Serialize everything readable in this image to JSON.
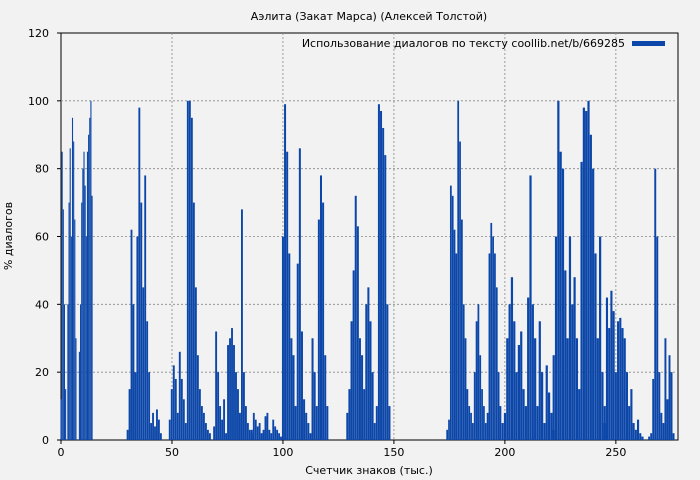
{
  "chart_data": {
    "type": "bar",
    "title": "Аэлита (Закат Марса) (Алексей Толстой)",
    "xlabel": "Счетчик знаков (тыс.)",
    "ylabel": "% диалогов",
    "xlim": [
      0,
      278
    ],
    "ylim": [
      0,
      120
    ],
    "xticks": [
      0,
      50,
      100,
      150,
      200,
      250
    ],
    "yticks": [
      0,
      20,
      40,
      60,
      80,
      100,
      120
    ],
    "grid": true,
    "legend_position": "top-right",
    "series": [
      {
        "name": "Использование диалогов по тексту coollib.net/b/669285",
        "color": "#0b46a8",
        "x_step": 0.5,
        "values": [
          12,
          85,
          68,
          40,
          15,
          0,
          40,
          70,
          86,
          60,
          95,
          88,
          65,
          30,
          0,
          0,
          26,
          40,
          70,
          80,
          85,
          75,
          60,
          85,
          90,
          95,
          100,
          72,
          0,
          0,
          0,
          0,
          0,
          0,
          0,
          0,
          0,
          0,
          0,
          0,
          0,
          0,
          0,
          0,
          0,
          0,
          0,
          0,
          0,
          0,
          0,
          0,
          0,
          0,
          0,
          0,
          0,
          0,
          0,
          0,
          0,
          0,
          0,
          0,
          0,
          0,
          0,
          0,
          0,
          0,
          0,
          0,
          0,
          0,
          0,
          0,
          0,
          0,
          0,
          0,
          0,
          0,
          0,
          0,
          0,
          0,
          0,
          0,
          0,
          0,
          0,
          0,
          0,
          0,
          0,
          0,
          0,
          0,
          0,
          0,
          0,
          0,
          0,
          0,
          0,
          0,
          0,
          0,
          0,
          0,
          0,
          0,
          0,
          0,
          0,
          0,
          0,
          0,
          0,
          0,
          0,
          0,
          0,
          0,
          0,
          0,
          0,
          0,
          0,
          0,
          0,
          0,
          0,
          0,
          0,
          0,
          0,
          0,
          0,
          0,
          0,
          0,
          0,
          0,
          0,
          0,
          0,
          0,
          0,
          0,
          0,
          0,
          0,
          0,
          0,
          0,
          0,
          0,
          0,
          0,
          0,
          0,
          0,
          0,
          0,
          0,
          0,
          0,
          0,
          0,
          0,
          0,
          0,
          0,
          0,
          0,
          0,
          0,
          0,
          0,
          0,
          0,
          0,
          0,
          0,
          0,
          0,
          0,
          0,
          0,
          0,
          0,
          0,
          0,
          0,
          0,
          0,
          0,
          0,
          0,
          0,
          0,
          0,
          0,
          0,
          0,
          0,
          0,
          0,
          0,
          0,
          0,
          0,
          0,
          0,
          0,
          0,
          0,
          0,
          0,
          0,
          0,
          0,
          0,
          0,
          0,
          0,
          0,
          0,
          0,
          0,
          0,
          0,
          0,
          0,
          0,
          0,
          0,
          0,
          0,
          0,
          0,
          0,
          0,
          0,
          0,
          0,
          0,
          0,
          0,
          0,
          0,
          0,
          0,
          0,
          0,
          0,
          0,
          0,
          0,
          0,
          0,
          0,
          0,
          0,
          0,
          0,
          0,
          0,
          0,
          0,
          0,
          0,
          0,
          0,
          0,
          0,
          0,
          0,
          0,
          0,
          0,
          0,
          0,
          0,
          0,
          0,
          0,
          0,
          0,
          0,
          0,
          0,
          0,
          0,
          0,
          0,
          0,
          0,
          0,
          0,
          0,
          0,
          0,
          0,
          0,
          0,
          0,
          0,
          0,
          0,
          0,
          0,
          0,
          0,
          0,
          0,
          0,
          0,
          0,
          0,
          0,
          0,
          0,
          0,
          0,
          0,
          0,
          0,
          0,
          0,
          0,
          0,
          0,
          0,
          0,
          0,
          0,
          0,
          0,
          0,
          0,
          0,
          0,
          0,
          0,
          0,
          0,
          0,
          0,
          0,
          0,
          0,
          0,
          0,
          0,
          0,
          0,
          0,
          0,
          0,
          0,
          0,
          0,
          0,
          0,
          0,
          0,
          0,
          0,
          0,
          0,
          0,
          0,
          0,
          0,
          0,
          0,
          0,
          0,
          0,
          0,
          0,
          0,
          0,
          0,
          0,
          0,
          0,
          0,
          0,
          0,
          0,
          0,
          0,
          0,
          0,
          0,
          0,
          0,
          0,
          0,
          0,
          0,
          0,
          0,
          0,
          0,
          0,
          0,
          0,
          0,
          0,
          0,
          0,
          0,
          0,
          0,
          0,
          0,
          0,
          0,
          0,
          0,
          0,
          0,
          0,
          0,
          0,
          0,
          0,
          0,
          0,
          0,
          0,
          0,
          0,
          0,
          0,
          0,
          0,
          0,
          0,
          0,
          0,
          0,
          0,
          0,
          0,
          0,
          0,
          0,
          0,
          0,
          0,
          0,
          0,
          0,
          0,
          0,
          0,
          0,
          0,
          0,
          0,
          0,
          0,
          0,
          0,
          0,
          0,
          0,
          0,
          0,
          0,
          0,
          0,
          0,
          0,
          0,
          0,
          0,
          0,
          0,
          0,
          0,
          0,
          0,
          0,
          0,
          0,
          0,
          0,
          0,
          0,
          0,
          0,
          0,
          0,
          0,
          0,
          0,
          0,
          0,
          0,
          0,
          0,
          0,
          0,
          0,
          0,
          0,
          0,
          0,
          0,
          0,
          0,
          0,
          0,
          0,
          0,
          0,
          0,
          0,
          0,
          0,
          0,
          0,
          0,
          0,
          0,
          0,
          0,
          0,
          0,
          0,
          0,
          0,
          0,
          0,
          0,
          0,
          0,
          0,
          0,
          0,
          0,
          0,
          0,
          0,
          0,
          0,
          0,
          0,
          0,
          0,
          0,
          0,
          0,
          0,
          0,
          0,
          0,
          0,
          0,
          0,
          0,
          0,
          0,
          0,
          0,
          0,
          0,
          0,
          0,
          0,
          0,
          0,
          0,
          0,
          0,
          0,
          0,
          0,
          0,
          0,
          0,
          0,
          0,
          0,
          0,
          0,
          0,
          0,
          0,
          0,
          0,
          0,
          0,
          0,
          0,
          0,
          0,
          0,
          0,
          0,
          0,
          0,
          0,
          0,
          0,
          0,
          0,
          0,
          0,
          0,
          0,
          0,
          0,
          0,
          0,
          0,
          0,
          0,
          0,
          0,
          0,
          0,
          0,
          0,
          0,
          0,
          0,
          0,
          0,
          0,
          0,
          0,
          0,
          0,
          0,
          0,
          0,
          0,
          0,
          0,
          0,
          0,
          0,
          0,
          0,
          0,
          0,
          0,
          0,
          0,
          0,
          0
        ]
      }
    ],
    "segments": [
      {
        "from": 0,
        "to": 14,
        "values": [
          12,
          85,
          68,
          40,
          15,
          0,
          40,
          70,
          86,
          60,
          95,
          88,
          65,
          30,
          0,
          0,
          26,
          40,
          70,
          80,
          85,
          75,
          60,
          85,
          90,
          95,
          100,
          72
        ]
      },
      {
        "from": 30,
        "to": 45,
        "values": [
          3,
          15,
          62,
          40,
          20,
          60,
          98,
          70,
          45,
          78,
          35,
          20,
          5,
          8,
          4,
          9,
          6,
          2
        ]
      },
      {
        "from": 49,
        "to": 68,
        "values": [
          6,
          15,
          22,
          18,
          8,
          26,
          18,
          12,
          5,
          100,
          100,
          95,
          70,
          45,
          25,
          15,
          10,
          8,
          5,
          3,
          2,
          0
        ]
      },
      {
        "from": 69,
        "to": 86,
        "values": [
          4,
          32,
          20,
          10,
          6,
          12,
          2,
          28,
          30,
          33,
          28,
          20,
          15,
          8,
          68,
          20,
          10,
          5,
          3,
          2
        ]
      },
      {
        "from": 86,
        "to": 100,
        "values": [
          3,
          8,
          6,
          4,
          5,
          2,
          3,
          7,
          8,
          3,
          2,
          6,
          4,
          3,
          2,
          1,
          0
        ]
      },
      {
        "from": 100,
        "to": 120,
        "values": [
          60,
          99,
          85,
          55,
          30,
          25,
          10,
          52,
          86,
          32,
          12,
          8,
          5,
          2,
          30,
          20,
          10,
          65,
          78,
          70,
          25,
          10
        ]
      },
      {
        "from": 129,
        "to": 148,
        "values": [
          8,
          15,
          35,
          50,
          72,
          63,
          30,
          25,
          15,
          40,
          45,
          35,
          20,
          5,
          10,
          99,
          97,
          92,
          84,
          40,
          10
        ]
      },
      {
        "from": 174,
        "to": 198,
        "values": [
          3,
          6,
          75,
          72,
          62,
          55,
          100,
          88,
          65,
          40,
          30,
          15,
          10,
          8,
          5,
          20,
          35,
          40,
          25,
          15,
          10,
          5,
          8,
          55,
          64,
          60,
          55,
          45,
          20,
          10
        ]
      },
      {
        "from": 199,
        "to": 222,
        "values": [
          5,
          8,
          30,
          40,
          48,
          35,
          20,
          28,
          32,
          15,
          10,
          42,
          78,
          40,
          30,
          10,
          35,
          20,
          5,
          22,
          14,
          8,
          3
        ]
      },
      {
        "from": 222,
        "to": 245,
        "values": [
          25,
          60,
          100,
          85,
          80,
          50,
          30,
          60,
          40,
          48,
          30,
          15,
          82,
          98,
          97,
          100,
          90,
          80,
          55,
          30,
          60,
          20,
          5
        ]
      },
      {
        "from": 245,
        "to": 262,
        "values": [
          10,
          42,
          33,
          44,
          38,
          20,
          35,
          36,
          33,
          30,
          20,
          10,
          15,
          5,
          3,
          6,
          2,
          1
        ]
      },
      {
        "from": 265,
        "to": 276,
        "values": [
          1,
          2,
          18,
          80,
          60,
          20,
          8,
          5,
          30,
          12,
          25,
          20,
          2
        ]
      }
    ]
  }
}
